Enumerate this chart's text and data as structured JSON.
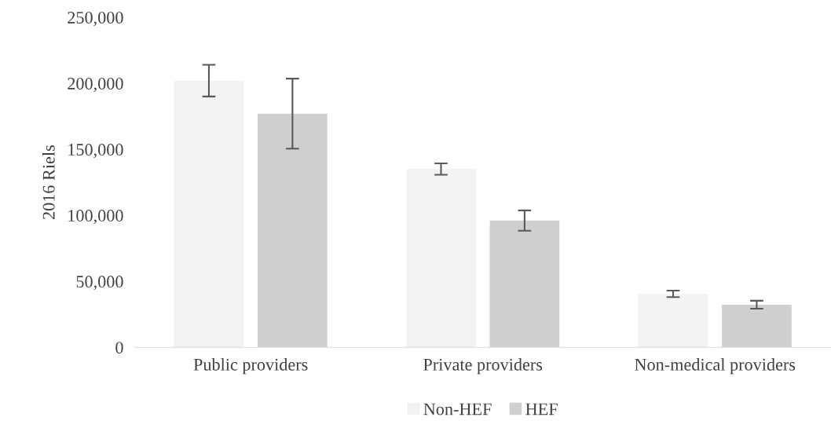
{
  "chart_data": {
    "type": "bar",
    "ylabel": "2016 Riels",
    "categories": [
      "Public providers",
      "Private providers",
      "Non-medical providers"
    ],
    "series": [
      {
        "name": "Non-HEF",
        "color": "#f2f2f2",
        "values": [
          202000,
          135000,
          40500
        ],
        "errors": [
          12000,
          4300,
          2500
        ]
      },
      {
        "name": "HEF",
        "color": "#d0cece",
        "values": [
          177000,
          96000,
          32300
        ],
        "errors": [
          26500,
          7700,
          3000
        ]
      }
    ],
    "ylim": [
      0,
      250000
    ],
    "yticks": [
      {
        "value": 0,
        "label": "0"
      },
      {
        "value": 50000,
        "label": "50,000"
      },
      {
        "value": 100000,
        "label": "100,000"
      },
      {
        "value": 150000,
        "label": "150,000"
      },
      {
        "value": 200000,
        "label": "200,000"
      },
      {
        "value": 250000,
        "label": "250,000"
      }
    ],
    "grid": false,
    "legend": "bottom"
  }
}
